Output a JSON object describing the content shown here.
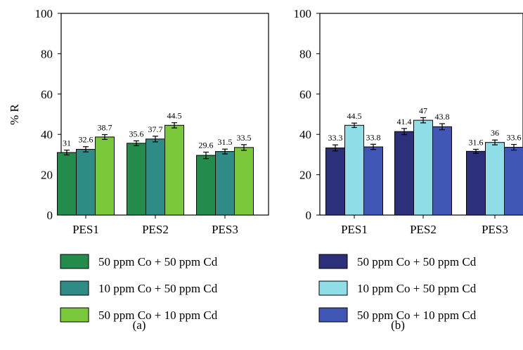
{
  "chart_data": [
    {
      "type": "bar",
      "panel_label": "(a)",
      "ylabel": "% R",
      "ylim": [
        0,
        100
      ],
      "yticks": [
        "0",
        "20",
        "40",
        "60",
        "80",
        "100"
      ],
      "categories": [
        "PES1",
        "PES2",
        "PES3"
      ],
      "series": [
        {
          "name": "50 ppm Co + 50 ppm Cd",
          "color": "#238b4b",
          "values": [
            31,
            35.6,
            29.6
          ],
          "errors": [
            1.2,
            1.2,
            1.6
          ],
          "labels": [
            "31",
            "35.6",
            "29.6"
          ]
        },
        {
          "name": "10 ppm Co + 50 ppm Cd",
          "color": "#2e8b86",
          "values": [
            32.6,
            37.7,
            31.5
          ],
          "errors": [
            1.3,
            1.4,
            1.2
          ],
          "labels": [
            "32.6",
            "37.7",
            "31.5"
          ]
        },
        {
          "name": "50 ppm Co + 10 ppm Cd",
          "color": "#79c93a",
          "values": [
            38.7,
            44.5,
            33.5
          ],
          "errors": [
            1.2,
            1.3,
            1.4
          ],
          "labels": [
            "38.7",
            "44.5",
            "33.5"
          ]
        }
      ]
    },
    {
      "type": "bar",
      "panel_label": "(b)",
      "ylabel": "",
      "ylim": [
        0,
        100
      ],
      "yticks": [
        "0",
        "20",
        "40",
        "60",
        "80",
        "100"
      ],
      "categories": [
        "PES1",
        "PES2",
        "PES3"
      ],
      "series": [
        {
          "name": "50 ppm Co + 50 ppm Cd",
          "color": "#2c2f7a",
          "values": [
            33.3,
            41.4,
            31.6
          ],
          "errors": [
            1.5,
            1.5,
            1.0
          ],
          "labels": [
            "33.3",
            "41.4",
            "31.6"
          ]
        },
        {
          "name": "10 ppm Co + 50 ppm Cd",
          "color": "#8fdde6",
          "values": [
            44.5,
            47,
            36
          ],
          "errors": [
            1.1,
            1.3,
            1.2
          ],
          "labels": [
            "44.5",
            "47",
            "36"
          ]
        },
        {
          "name": "50 ppm Co + 10 ppm Cd",
          "color": "#3f56b5",
          "values": [
            33.8,
            43.8,
            33.6
          ],
          "errors": [
            1.3,
            1.5,
            1.4
          ],
          "labels": [
            "33.8",
            "43.8",
            "33.6"
          ]
        }
      ]
    }
  ]
}
